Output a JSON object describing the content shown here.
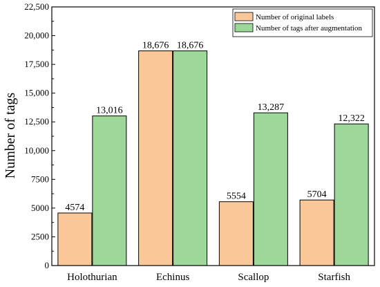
{
  "chart_data": {
    "type": "bar",
    "title": "",
    "xlabel": "",
    "ylabel": "Number of tags",
    "ylim": [
      0,
      22500
    ],
    "yticks": [
      0,
      2500,
      5000,
      7500,
      10000,
      12500,
      15000,
      17500,
      20000,
      22500
    ],
    "ytick_labels": [
      "0",
      "2500",
      "5000",
      "7500",
      "10,000",
      "12,500",
      "15,000",
      "17,500",
      "20,000",
      "22,500"
    ],
    "categories": [
      "Holothurian",
      "Echinus",
      "Scallop",
      "Starfish"
    ],
    "series": [
      {
        "name": "Number of original labels",
        "color": "#FAC898",
        "values": [
          4574,
          18676,
          5554,
          5704
        ],
        "value_labels": [
          "4574",
          "18,676",
          "5554",
          "5704"
        ]
      },
      {
        "name": "Number of tags after augmentation",
        "color": "#9ED79A",
        "values": [
          13016,
          18676,
          13287,
          12322
        ],
        "value_labels": [
          "13,016",
          "18,676",
          "13,287",
          "12,322"
        ]
      }
    ],
    "legend_position": "top-right",
    "grid": false
  }
}
